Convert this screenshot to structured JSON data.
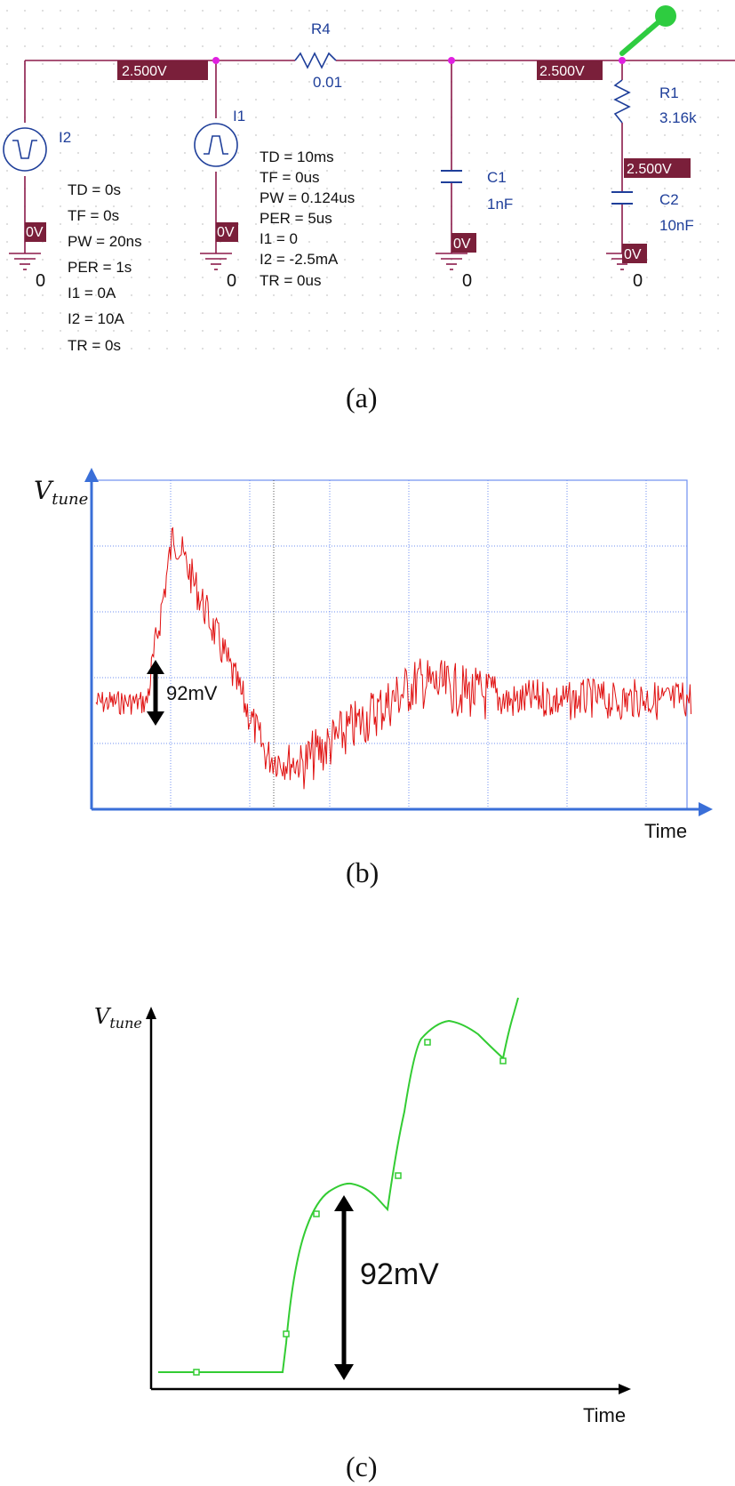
{
  "schematic": {
    "caption": "(a)",
    "net_voltage": "2.500V",
    "ground_voltage": "0V",
    "ground_label": "0",
    "i2": {
      "name": "I2",
      "params": [
        "TD = 0s",
        "TF = 0s",
        "PW = 20ns",
        "PER = 1s",
        "I1 = 0A",
        "I2 = 10A",
        "TR = 0s"
      ]
    },
    "i1": {
      "name": "I1",
      "params": [
        "TD = 10ms",
        "TF = 0us",
        "PW = 0.124us",
        "PER = 5us",
        "I1 = 0",
        "I2 = -2.5mA",
        "TR = 0us"
      ]
    },
    "r4": {
      "name": "R4",
      "value": "0.01"
    },
    "c1": {
      "name": "C1",
      "value": "1nF"
    },
    "r1": {
      "name": "R1",
      "value": "3.16k"
    },
    "c2": {
      "name": "C2",
      "value": "10nF"
    }
  },
  "panel_b": {
    "caption": "(b)",
    "y_label_main": "V",
    "y_label_sub": "tune",
    "x_label": "Time",
    "annotation": "92mV",
    "trace_color": "#e01010",
    "grid_color": "#6f8ff0",
    "axis_color": "#3a6fd8"
  },
  "panel_c": {
    "caption": "(c)",
    "y_label_main": "V",
    "y_label_sub": "tune",
    "x_label": "Time",
    "annotation": "92mV",
    "trace_color": "#33cc33"
  }
}
